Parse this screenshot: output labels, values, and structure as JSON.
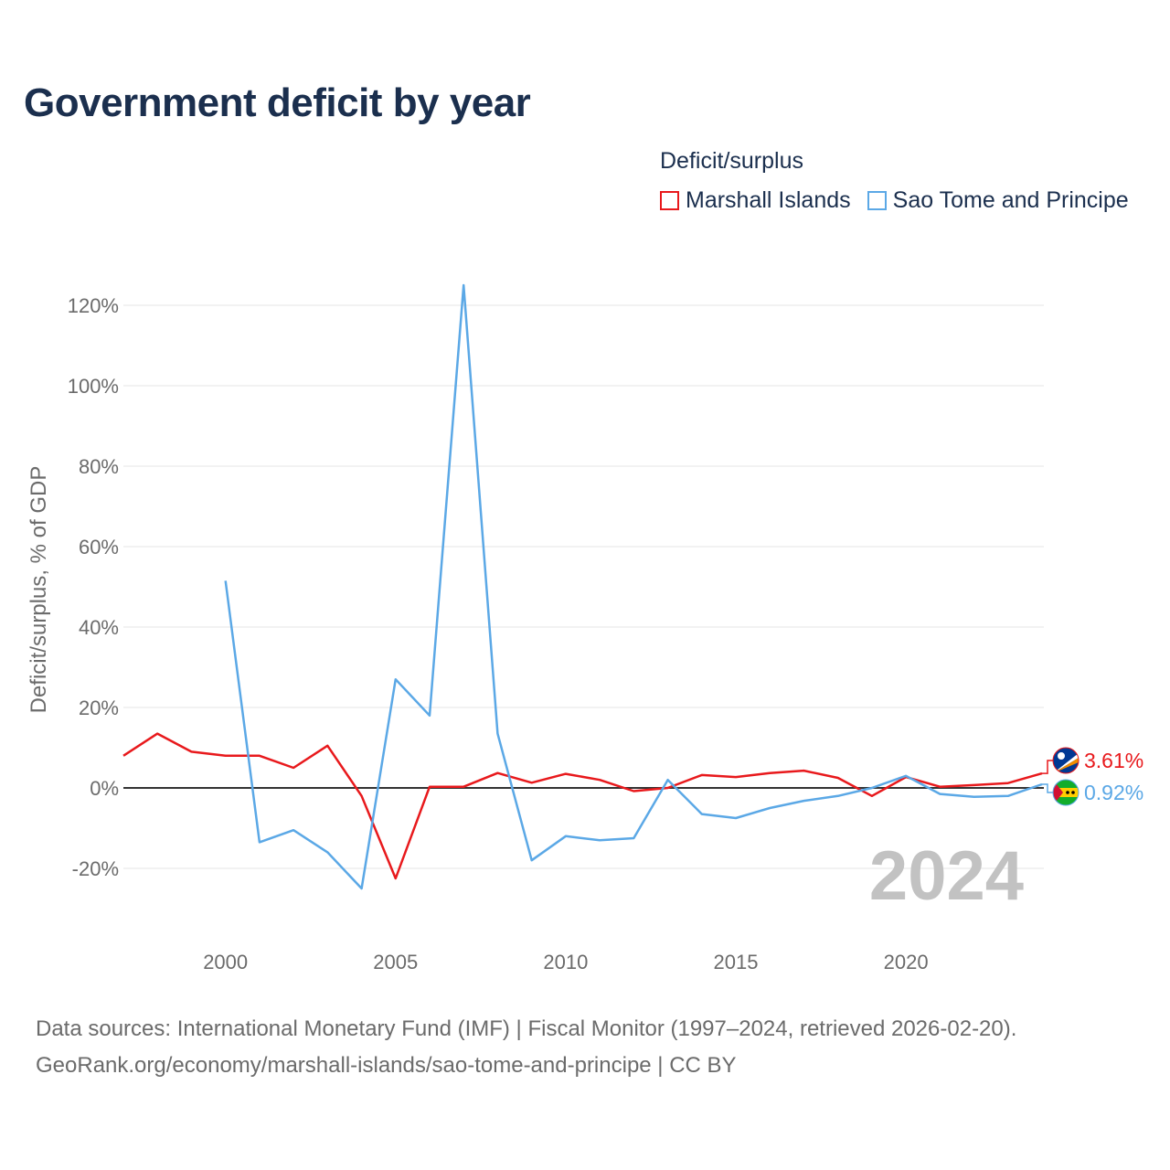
{
  "page": {
    "title": "Government deficit by year",
    "footer_line1": "Data sources: International Monetary Fund (IMF) | Fiscal Monitor (1997–2024, retrieved 2026-02-20).",
    "footer_line2": "GeoRank.org/economy/marshall-islands/sao-tome-and-principe | CC BY"
  },
  "legend": {
    "title": "Deficit/surplus",
    "items": [
      {
        "label": "Marshall Islands",
        "color": "#e8191c"
      },
      {
        "label": "Sao Tome and Principe",
        "color": "#5ba8e6"
      }
    ]
  },
  "chart_data": {
    "type": "line",
    "title": "Government deficit by year",
    "xlabel": "",
    "ylabel": "Deficit/surplus, % of GDP",
    "xlim": [
      1997,
      2024
    ],
    "ylim": [
      -25,
      125
    ],
    "x_ticks": [
      2000,
      2005,
      2010,
      2015,
      2020
    ],
    "y_ticks": [
      -20,
      0,
      20,
      40,
      60,
      80,
      100,
      120
    ],
    "y_tick_labels": [
      "-20%",
      "0%",
      "20%",
      "40%",
      "60%",
      "80%",
      "100%",
      "120%"
    ],
    "x_tick_labels": [
      "2000",
      "2005",
      "2010",
      "2015",
      "2020"
    ],
    "watermark_year": "2024",
    "series": [
      {
        "name": "Marshall Islands",
        "color": "#e8191c",
        "end_label": "3.61%",
        "flag": "marshall-islands-flag-icon",
        "x": [
          1997,
          1998,
          1999,
          2000,
          2001,
          2002,
          2003,
          2004,
          2005,
          2006,
          2007,
          2008,
          2009,
          2010,
          2011,
          2012,
          2013,
          2014,
          2015,
          2016,
          2017,
          2018,
          2019,
          2020,
          2021,
          2022,
          2023,
          2024
        ],
        "values": [
          8.0,
          13.5,
          9.0,
          8.0,
          8.0,
          5.0,
          10.5,
          -2.0,
          -22.5,
          0.3,
          0.3,
          3.7,
          1.3,
          3.5,
          2.0,
          -0.8,
          0.0,
          3.2,
          2.7,
          3.7,
          4.3,
          2.5,
          -2.0,
          2.7,
          0.3,
          0.7,
          1.2,
          3.61
        ]
      },
      {
        "name": "Sao Tome and Principe",
        "color": "#5ba8e6",
        "end_label": "0.92%",
        "flag": "sao-tome-flag-icon",
        "x": [
          2000,
          2001,
          2002,
          2003,
          2004,
          2005,
          2006,
          2007,
          2008,
          2009,
          2010,
          2011,
          2012,
          2013,
          2014,
          2015,
          2016,
          2017,
          2018,
          2019,
          2020,
          2021,
          2022,
          2023,
          2024
        ],
        "values": [
          51.5,
          -13.5,
          -10.5,
          -16.0,
          -25.0,
          27.0,
          18.0,
          125.0,
          13.5,
          -18.0,
          -12.0,
          -13.0,
          -12.5,
          2.0,
          -6.5,
          -7.5,
          -5.0,
          -3.2,
          -2.0,
          0.0,
          3.0,
          -1.5,
          -2.2,
          -2.0,
          0.92
        ]
      }
    ]
  }
}
